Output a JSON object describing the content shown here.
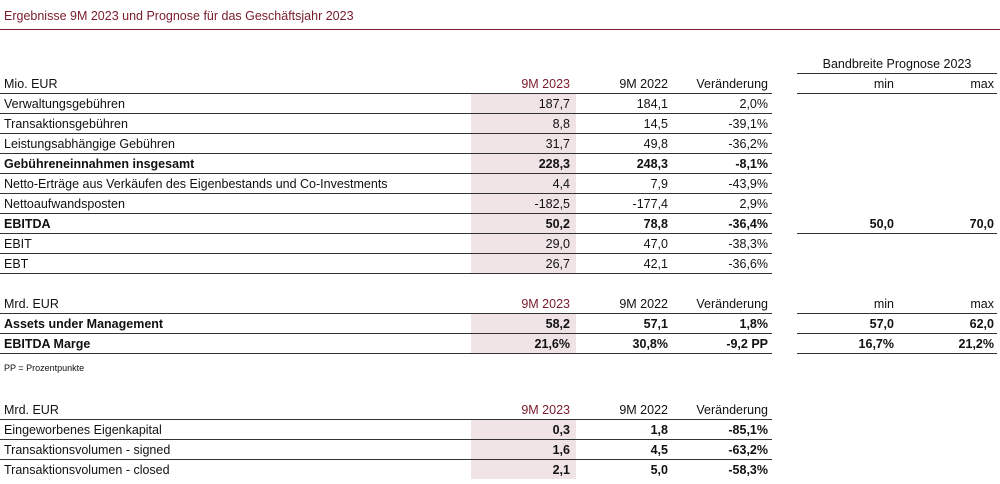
{
  "title": "Ergebnisse 9M 2023 und Prognose für das Geschäftsjahr 2023",
  "band_header": "Bandbreite Prognose 2023",
  "note": "PP = Prozentpunkte",
  "section1": {
    "header": {
      "label": "Mio. EUR",
      "c1": "9M 2023",
      "c2": "9M 2022",
      "c3": "Veränderung",
      "min": "min",
      "max": "max"
    },
    "rows": [
      {
        "label": "Verwaltungsgebühren",
        "c1": "187,7",
        "c2": "184,1",
        "c3": "2,0%",
        "min": "",
        "max": ""
      },
      {
        "label": "Transaktionsgebühren",
        "c1": "8,8",
        "c2": "14,5",
        "c3": "-39,1%",
        "min": "",
        "max": ""
      },
      {
        "label": "Leistungsabhängige Gebühren",
        "c1": "31,7",
        "c2": "49,8",
        "c3": "-36,2%",
        "min": "",
        "max": ""
      },
      {
        "label": "Gebühreneinnahmen insgesamt",
        "c1": "228,3",
        "c2": "248,3",
        "c3": "-8,1%",
        "min": "",
        "max": ""
      },
      {
        "label": "Netto-Erträge aus Verkäufen des Eigenbestands und Co-Investments",
        "c1": "4,4",
        "c2": "7,9",
        "c3": "-43,9%",
        "min": "",
        "max": ""
      },
      {
        "label": "Nettoaufwandsposten",
        "c1": "-182,5",
        "c2": "-177,4",
        "c3": "2,9%",
        "min": "",
        "max": ""
      },
      {
        "label": "EBITDA",
        "c1": "50,2",
        "c2": "78,8",
        "c3": "-36,4%",
        "min": "50,0",
        "max": "70,0"
      },
      {
        "label": "EBIT",
        "c1": "29,0",
        "c2": "47,0",
        "c3": "-38,3%",
        "min": "",
        "max": ""
      },
      {
        "label": "EBT",
        "c1": "26,7",
        "c2": "42,1",
        "c3": "-36,6%",
        "min": "",
        "max": ""
      }
    ]
  },
  "section2": {
    "header": {
      "label": "Mrd. EUR",
      "c1": "9M 2023",
      "c2": "9M 2022",
      "c3": "Veränderung",
      "min": "min",
      "max": "max"
    },
    "rows": [
      {
        "label": "Assets under Management",
        "c1": "58,2",
        "c2": "57,1",
        "c3": "1,8%",
        "min": "57,0",
        "max": "62,0"
      },
      {
        "label": "EBITDA Marge",
        "c1": "21,6%",
        "c2": "30,8%",
        "c3": "-9,2 PP",
        "min": "16,7%",
        "max": "21,2%"
      }
    ]
  },
  "section3": {
    "header": {
      "label": "Mrd. EUR",
      "c1": "9M 2023",
      "c2": "9M 2022",
      "c3": "Veränderung"
    },
    "rows": [
      {
        "label": "Eingeworbenes Eigenkapital",
        "c1": "0,3",
        "c2": "1,8",
        "c3": "-85,1%"
      },
      {
        "label": "Transaktionsvolumen - signed",
        "c1": "1,6",
        "c2": "4,5",
        "c3": "-63,2%"
      },
      {
        "label": "Transaktionsvolumen - closed",
        "c1": "2,1",
        "c2": "5,0",
        "c3": "-58,3%"
      }
    ]
  }
}
